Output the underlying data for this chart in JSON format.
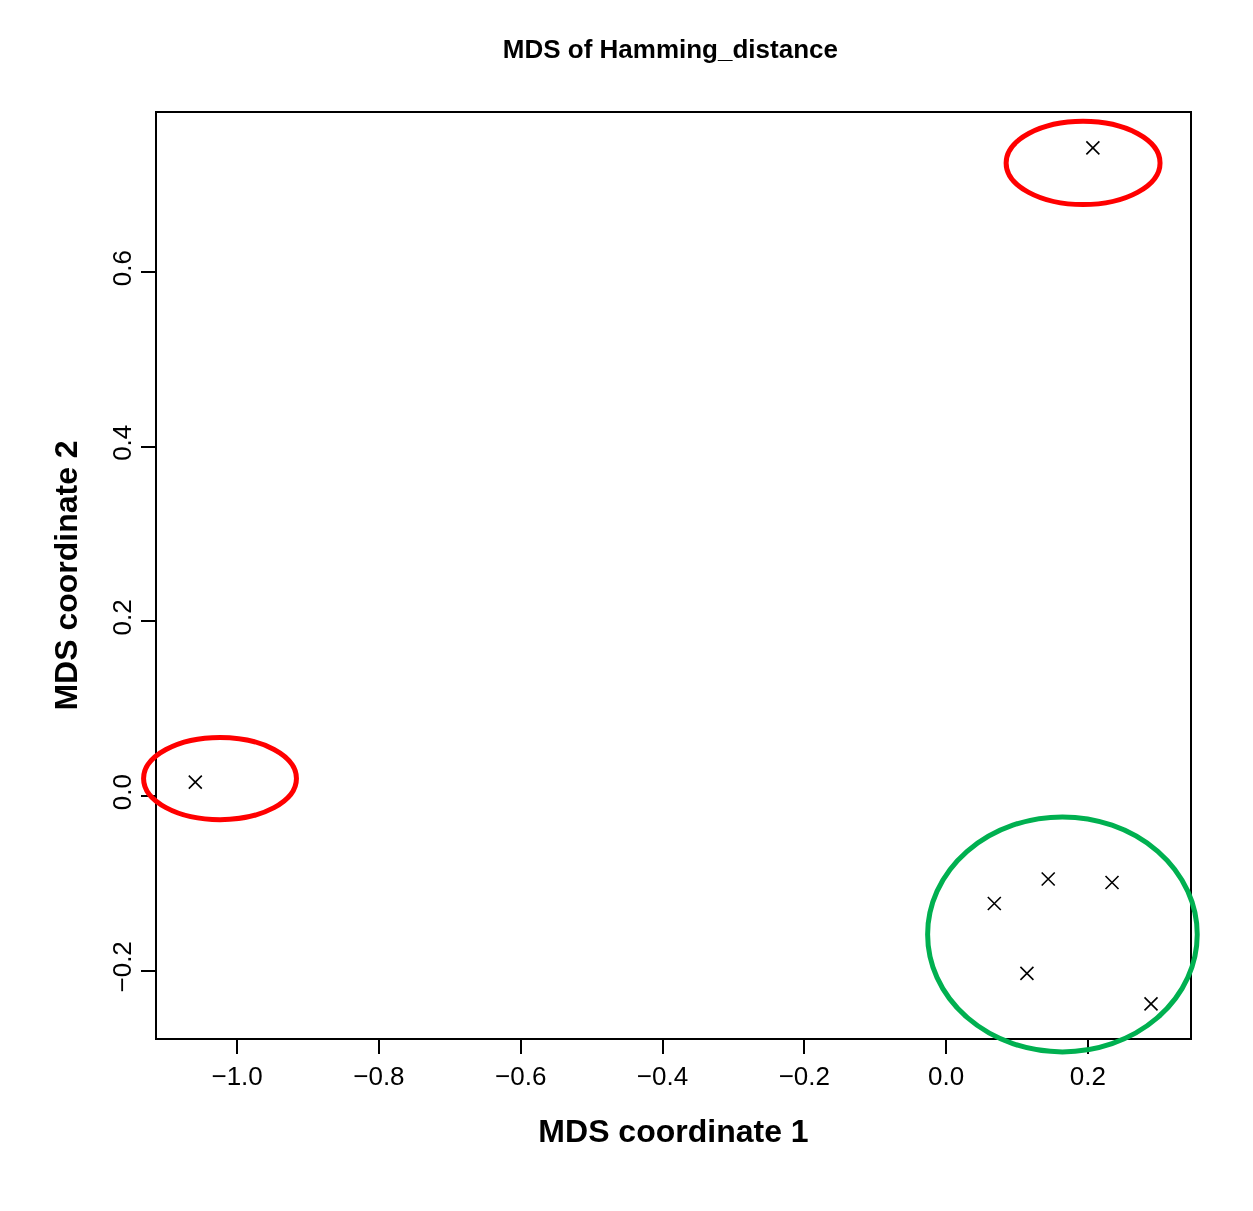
{
  "chart_data": {
    "type": "scatter",
    "title": "MDS of Hamming_distance",
    "xlabel": "MDS coordinate 1",
    "ylabel": "MDS coordinate 2",
    "x": [
      0.207,
      -1.059,
      0.068,
      0.144,
      0.234,
      0.114,
      0.289
    ],
    "values": [
      0.742,
      0.016,
      -0.123,
      -0.095,
      -0.099,
      -0.203,
      -0.238
    ],
    "color": "#000000",
    "marker": "cross",
    "xlim": [
      -1.113,
      0.344
    ],
    "xticks": [
      {
        "value": -1.0,
        "label": "−1.0"
      },
      {
        "value": -0.8,
        "label": "−0.8"
      },
      {
        "value": -0.6,
        "label": "−0.6"
      },
      {
        "value": -0.4,
        "label": "−0.4"
      },
      {
        "value": -0.2,
        "label": "−0.2"
      },
      {
        "value": 0.0,
        "label": "0.0"
      },
      {
        "value": 0.2,
        "label": "0.2"
      }
    ],
    "ylim": [
      -0.277,
      0.782
    ],
    "yticks": [
      {
        "value": -0.2,
        "label": "−0.2"
      },
      {
        "value": 0.0,
        "label": "0.0"
      },
      {
        "value": 0.2,
        "label": "0.2"
      },
      {
        "value": 0.4,
        "label": "0.4"
      },
      {
        "value": 0.6,
        "label": "0.6"
      }
    ]
  }
}
